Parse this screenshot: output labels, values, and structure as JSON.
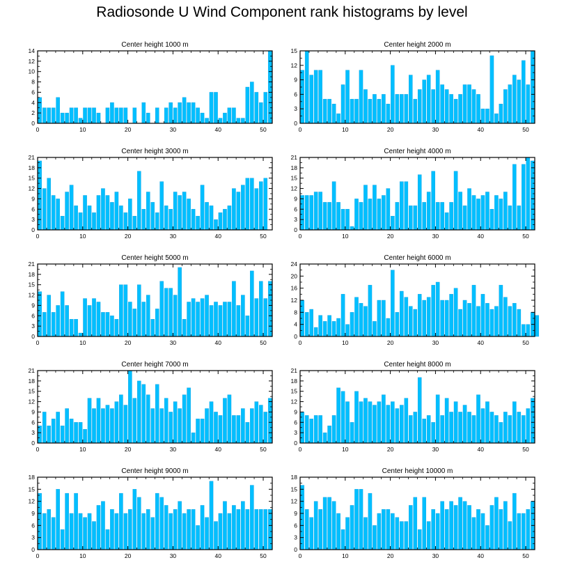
{
  "title": "Radiosonde U Wind Component rank histograms by level",
  "colors": {
    "bar": "#00BFFF",
    "bar_edge": "#1aa0e0",
    "axis": "#000000"
  },
  "chart_data": [
    {
      "type": "bar",
      "title": "Center height 1000 m",
      "ylim": [
        0,
        14
      ],
      "yticks": [
        0,
        2,
        4,
        6,
        8,
        10,
        12,
        14
      ],
      "xlim": [
        0,
        52
      ],
      "xticks": [
        0,
        10,
        20,
        30,
        40,
        50
      ],
      "values": [
        5,
        3,
        3,
        3,
        5,
        2,
        2,
        3,
        3,
        1,
        3,
        3,
        3,
        2,
        0,
        3,
        4,
        3,
        3,
        3,
        0,
        3,
        0,
        4,
        2,
        0,
        3,
        0,
        3,
        4,
        3,
        4,
        5,
        4,
        4,
        3,
        2,
        1,
        6,
        6,
        1,
        2,
        3,
        3,
        1,
        1,
        7,
        8,
        6,
        4,
        6,
        14
      ]
    },
    {
      "type": "bar",
      "title": "Center height 2000 m",
      "ylim": [
        0,
        15
      ],
      "yticks": [
        0,
        3,
        6,
        9,
        12,
        15
      ],
      "xlim": [
        0,
        52
      ],
      "xticks": [
        0,
        10,
        20,
        30,
        40,
        50
      ],
      "values": [
        11,
        15,
        10,
        11,
        11,
        5,
        5,
        4,
        2,
        8,
        11,
        5,
        5,
        11,
        7,
        5,
        6,
        5,
        6,
        4,
        12,
        6,
        6,
        6,
        10,
        5,
        7,
        9,
        10,
        7,
        11,
        8,
        7,
        6,
        5,
        6,
        8,
        8,
        7,
        6,
        3,
        3,
        14,
        2,
        4,
        7,
        8,
        10,
        9,
        13,
        8,
        15
      ]
    },
    {
      "type": "bar",
      "title": "Center height 3000 m",
      "ylim": [
        0,
        21
      ],
      "yticks": [
        0,
        3,
        6,
        9,
        12,
        15,
        18,
        21
      ],
      "xlim": [
        0,
        52
      ],
      "xticks": [
        0,
        10,
        20,
        30,
        40,
        50
      ],
      "values": [
        20,
        12,
        15,
        10,
        9,
        4,
        11,
        13,
        7,
        5,
        10,
        7,
        5,
        10,
        12,
        10,
        8,
        11,
        7,
        5,
        9,
        4,
        17,
        6,
        11,
        8,
        5,
        14,
        7,
        6,
        11,
        10,
        11,
        9,
        6,
        4,
        13,
        8,
        7,
        3,
        5,
        6,
        7,
        12,
        11,
        13,
        15,
        15,
        12,
        14,
        15,
        0
      ]
    },
    {
      "type": "bar",
      "title": "Center height 4000 m",
      "ylim": [
        0,
        21
      ],
      "yticks": [
        0,
        3,
        6,
        9,
        12,
        15,
        18,
        21
      ],
      "xlim": [
        0,
        52
      ],
      "xticks": [
        0,
        10,
        20,
        30,
        40,
        50
      ],
      "values": [
        10,
        10,
        10,
        11,
        11,
        8,
        8,
        14,
        8,
        6,
        6,
        1,
        9,
        8,
        13,
        9,
        13,
        9,
        10,
        12,
        4,
        8,
        14,
        14,
        7,
        7,
        16,
        8,
        11,
        17,
        8,
        8,
        5,
        8,
        17,
        11,
        7,
        12,
        10,
        9,
        10,
        11,
        6,
        10,
        9,
        11,
        7,
        19,
        7,
        19,
        21,
        20
      ]
    },
    {
      "type": "bar",
      "title": "Center height 5000 m",
      "ylim": [
        0,
        21
      ],
      "yticks": [
        0,
        3,
        6,
        9,
        12,
        15,
        18,
        21
      ],
      "xlim": [
        0,
        52
      ],
      "xticks": [
        0,
        10,
        20,
        30,
        40,
        50
      ],
      "values": [
        13,
        7,
        12,
        7,
        9,
        13,
        9,
        5,
        5,
        1,
        11,
        9,
        11,
        10,
        7,
        7,
        6,
        5,
        15,
        15,
        10,
        8,
        15,
        10,
        12,
        5,
        8,
        16,
        14,
        14,
        12,
        20,
        5,
        10,
        11,
        10,
        11,
        12,
        9,
        10,
        9,
        10,
        10,
        16,
        9,
        12,
        6,
        19,
        11,
        16,
        11,
        16
      ]
    },
    {
      "type": "bar",
      "title": "Center height 6000 m",
      "ylim": [
        0,
        24
      ],
      "yticks": [
        0,
        4,
        8,
        12,
        16,
        20,
        24
      ],
      "xlim": [
        0,
        52
      ],
      "xticks": [
        0,
        10,
        20,
        30,
        40,
        50
      ],
      "values": [
        12,
        8,
        9,
        3,
        7,
        5,
        7,
        5,
        6,
        14,
        4,
        8,
        13,
        11,
        10,
        17,
        5,
        12,
        12,
        6,
        22,
        8,
        15,
        13,
        10,
        9,
        14,
        12,
        13,
        17,
        18,
        12,
        12,
        14,
        16,
        9,
        12,
        11,
        17,
        10,
        14,
        11,
        9,
        10,
        17,
        13,
        10,
        11,
        9,
        4,
        4,
        8,
        7
      ]
    },
    {
      "type": "bar",
      "title": "Center height 7000 m",
      "ylim": [
        0,
        21
      ],
      "yticks": [
        0,
        3,
        6,
        9,
        12,
        15,
        18,
        21
      ],
      "xlim": [
        0,
        52
      ],
      "xticks": [
        0,
        10,
        20,
        30,
        40,
        50
      ],
      "values": [
        5,
        9,
        5,
        7,
        9,
        5,
        10,
        7,
        6,
        6,
        4,
        13,
        10,
        13,
        10,
        11,
        10,
        12,
        14,
        11,
        21,
        13,
        18,
        17,
        14,
        10,
        17,
        10,
        13,
        9,
        12,
        10,
        14,
        16,
        3,
        7,
        7,
        10,
        12,
        9,
        8,
        13,
        14,
        8,
        8,
        10,
        6,
        10,
        12,
        11,
        9,
        13
      ]
    },
    {
      "type": "bar",
      "title": "Center height 8000 m",
      "ylim": [
        0,
        21
      ],
      "yticks": [
        0,
        3,
        6,
        9,
        12,
        15,
        18,
        21
      ],
      "xlim": [
        0,
        52
      ],
      "xticks": [
        0,
        10,
        20,
        30,
        40,
        50
      ],
      "values": [
        9,
        8,
        7,
        8,
        8,
        3,
        5,
        8,
        16,
        15,
        12,
        6,
        15,
        12,
        13,
        12,
        11,
        12,
        14,
        11,
        12,
        10,
        11,
        13,
        8,
        9,
        19,
        7,
        8,
        6,
        14,
        8,
        13,
        9,
        12,
        9,
        11,
        9,
        8,
        14,
        10,
        12,
        9,
        8,
        6,
        9,
        8,
        12,
        9,
        8,
        10,
        13
      ]
    },
    {
      "type": "bar",
      "title": "Center height 9000 m",
      "ylim": [
        0,
        18
      ],
      "yticks": [
        0,
        3,
        6,
        9,
        12,
        15,
        18
      ],
      "xlim": [
        0,
        52
      ],
      "xticks": [
        0,
        10,
        20,
        30,
        40,
        50
      ],
      "values": [
        14,
        9,
        10,
        8,
        15,
        5,
        14,
        9,
        14,
        9,
        8,
        9,
        7,
        11,
        12,
        5,
        10,
        9,
        14,
        9,
        10,
        15,
        13,
        9,
        10,
        8,
        14,
        13,
        11,
        9,
        10,
        12,
        9,
        10,
        10,
        6,
        11,
        8,
        17,
        7,
        9,
        12,
        9,
        11,
        10,
        12,
        10,
        16,
        10,
        10,
        10,
        10
      ]
    },
    {
      "type": "bar",
      "title": "Center height 10000 m",
      "ylim": [
        0,
        18
      ],
      "yticks": [
        0,
        3,
        6,
        9,
        12,
        15,
        18
      ],
      "xlim": [
        0,
        52
      ],
      "xticks": [
        0,
        10,
        20,
        30,
        40,
        50
      ],
      "values": [
        16,
        10,
        8,
        12,
        10,
        13,
        13,
        12,
        9,
        5,
        8,
        11,
        15,
        15,
        8,
        14,
        6,
        9,
        10,
        10,
        9,
        8,
        7,
        7,
        11,
        13,
        5,
        13,
        7,
        10,
        9,
        12,
        10,
        12,
        11,
        13,
        12,
        11,
        8,
        10,
        9,
        6,
        11,
        13,
        10,
        12,
        7,
        14,
        9,
        9,
        10,
        12
      ]
    }
  ]
}
